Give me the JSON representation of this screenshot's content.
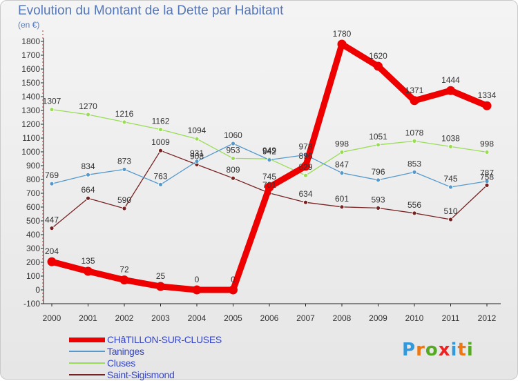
{
  "page": {
    "title": "Evolution du Montant de la Dette par Habitant",
    "unit": "(en €)"
  },
  "logo": {
    "text": "Proxiti",
    "colors": [
      "#3399dd",
      "#ee7711",
      "#55aa22",
      "#ee2222",
      "#3399dd",
      "#ee7711",
      "#55aa22"
    ]
  },
  "chart_data": {
    "type": "line",
    "title": "Evolution du Montant de la Dette par Habitant",
    "ylabel": "(en €)",
    "xlabel": "",
    "x": [
      "2000",
      "2001",
      "2002",
      "2003",
      "2004",
      "2005",
      "2006",
      "2007",
      "2008",
      "2009",
      "2010",
      "2011",
      "2012"
    ],
    "yticks": [
      -100,
      0,
      100,
      200,
      300,
      400,
      500,
      600,
      700,
      800,
      900,
      1000,
      1100,
      1200,
      1300,
      1400,
      1500,
      1600,
      1700,
      1800
    ],
    "ylim": [
      -100,
      1900
    ],
    "grid": false,
    "legend_position": "bottom-left",
    "series": [
      {
        "name": "Saint-Sigismond",
        "color": "#772222",
        "values": [
          447,
          664,
          590,
          1009,
          908,
          809,
          701,
          634,
          601,
          593,
          556,
          510,
          758
        ],
        "labels": [
          "447",
          "664",
          "590",
          "1009",
          "908",
          "809",
          "701",
          "634",
          "601",
          "593",
          "556",
          "510",
          "758"
        ]
      },
      {
        "name": "Cluses",
        "color": "#99dd55",
        "values": [
          1307,
          1270,
          1216,
          1162,
          1094,
          953,
          949,
          829,
          998,
          1051,
          1078,
          1038,
          998
        ],
        "labels": [
          "1307",
          "1270",
          "1216",
          "1162",
          "1094",
          "953",
          "949",
          "829",
          "998",
          "1051",
          "1078",
          "1038",
          "998"
        ]
      },
      {
        "name": "Taninges",
        "color": "#5599cc",
        "values": [
          769,
          834,
          873,
          763,
          931,
          1060,
          942,
          978,
          847,
          796,
          853,
          745,
          787
        ],
        "labels": [
          "769",
          "834",
          "873",
          "763",
          "931",
          "1060",
          "942",
          "978",
          "847",
          "796",
          "853",
          "745",
          "787"
        ]
      },
      {
        "name": "CHâTILLON-SUR-CLUSES",
        "color": "#ee0000",
        "values": [
          204,
          135,
          72,
          25,
          0,
          0,
          745,
          896,
          1780,
          1620,
          1371,
          1444,
          1334
        ],
        "labels": [
          "204",
          "135",
          "72",
          "25",
          "0",
          "0",
          "745",
          "896",
          "1780",
          "1620",
          "1371",
          "1444",
          "1334"
        ]
      }
    ],
    "legend": [
      "CHâTILLON-SUR-CLUSES",
      "Taninges",
      "Cluses",
      "Saint-Sigismond"
    ]
  }
}
